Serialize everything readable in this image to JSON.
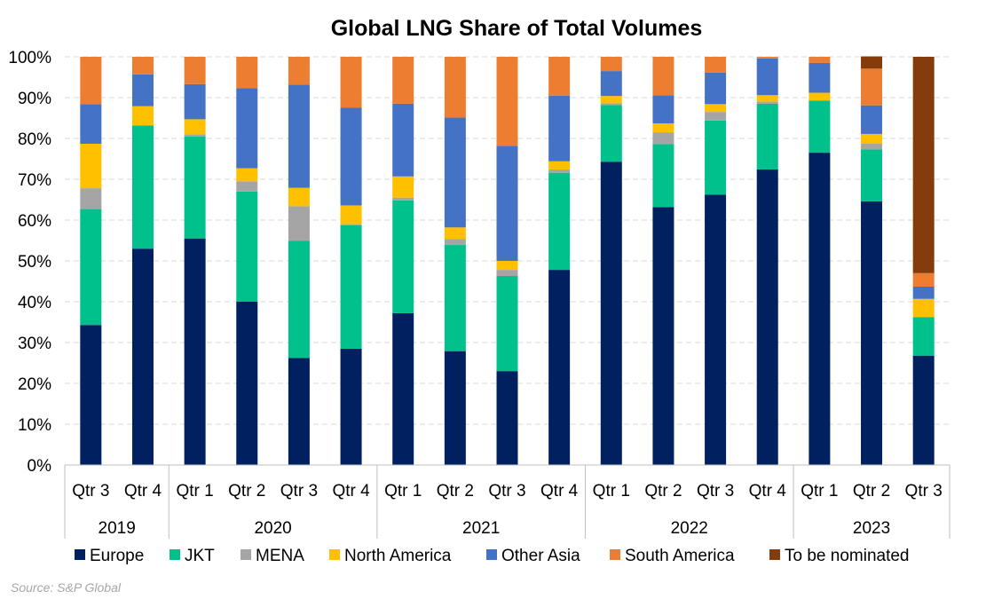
{
  "chart_data": {
    "type": "bar",
    "stacked": true,
    "title": "Global LNG Share of Total Volumes",
    "xlabel": "",
    "ylabel": "",
    "ylim": [
      0,
      100
    ],
    "y_ticks": [
      "0%",
      "10%",
      "20%",
      "30%",
      "40%",
      "50%",
      "60%",
      "70%",
      "80%",
      "90%",
      "100%"
    ],
    "grid": "horizontal dashed",
    "legend_position": "bottom",
    "categories": [
      "Qtr 3",
      "Qtr 4",
      "Qtr 1",
      "Qtr 2",
      "Qtr 3",
      "Qtr 4",
      "Qtr 1",
      "Qtr 2",
      "Qtr 3",
      "Qtr 4",
      "Qtr 1",
      "Qtr 2",
      "Qtr 3",
      "Qtr 4",
      "Qtr 1",
      "Qtr 2",
      "Qtr 3"
    ],
    "groups": [
      {
        "label": "2019",
        "count": 2
      },
      {
        "label": "2020",
        "count": 4
      },
      {
        "label": "2021",
        "count": 4
      },
      {
        "label": "2022",
        "count": 4
      },
      {
        "label": "2023",
        "count": 3
      }
    ],
    "series": [
      {
        "name": "Europe",
        "color": "#002060",
        "values": [
          34.3,
          53,
          55.5,
          40,
          26.2,
          28.5,
          37.2,
          27.9,
          23,
          47.8,
          74.3,
          63.2,
          66.2,
          72.4,
          76.5,
          64.6,
          26.8
        ]
      },
      {
        "name": "JKT",
        "color": "#00c08b",
        "values": [
          28.4,
          30.2,
          25,
          27,
          28.7,
          30.2,
          27.6,
          26,
          23.3,
          23.8,
          13.9,
          15.4,
          18.2,
          16.1,
          12.8,
          12.7,
          9.4
        ]
      },
      {
        "name": "MENA",
        "color": "#a5a5a5",
        "values": [
          5.1,
          0,
          0.5,
          2.5,
          8.5,
          0.3,
          0.7,
          1.5,
          1.5,
          0.8,
          0.4,
          2.9,
          2.1,
          0.5,
          0,
          1.4,
          0
        ]
      },
      {
        "name": "North America",
        "color": "#ffc000",
        "values": [
          10.9,
          4.7,
          3.7,
          3.2,
          4.5,
          4.6,
          5.2,
          2.8,
          2.2,
          2,
          1.8,
          2.2,
          1.9,
          1.6,
          1.9,
          2.4,
          4.5
        ]
      },
      {
        "name": "Other Asia",
        "color": "#4472c4",
        "values": [
          9.7,
          7.8,
          8.6,
          19.6,
          25.3,
          23.9,
          17.8,
          26.9,
          28.2,
          16.1,
          6.1,
          6.9,
          7.7,
          9,
          7.3,
          7,
          3
        ]
      },
      {
        "name": "South America",
        "color": "#ed7d31",
        "values": [
          11.6,
          4.3,
          6.7,
          7.7,
          6.8,
          12.5,
          11.5,
          14.9,
          21.8,
          9.5,
          3.5,
          9.4,
          3.9,
          0.4,
          1.5,
          9,
          3.3
        ]
      },
      {
        "name": "To be nominated",
        "color": "#843c0c",
        "values": [
          0,
          0,
          0,
          0,
          0,
          0,
          0,
          0,
          0,
          0,
          0,
          0,
          0,
          0,
          0,
          3,
          53
        ]
      }
    ],
    "source_note": "Source: S&P Global"
  }
}
